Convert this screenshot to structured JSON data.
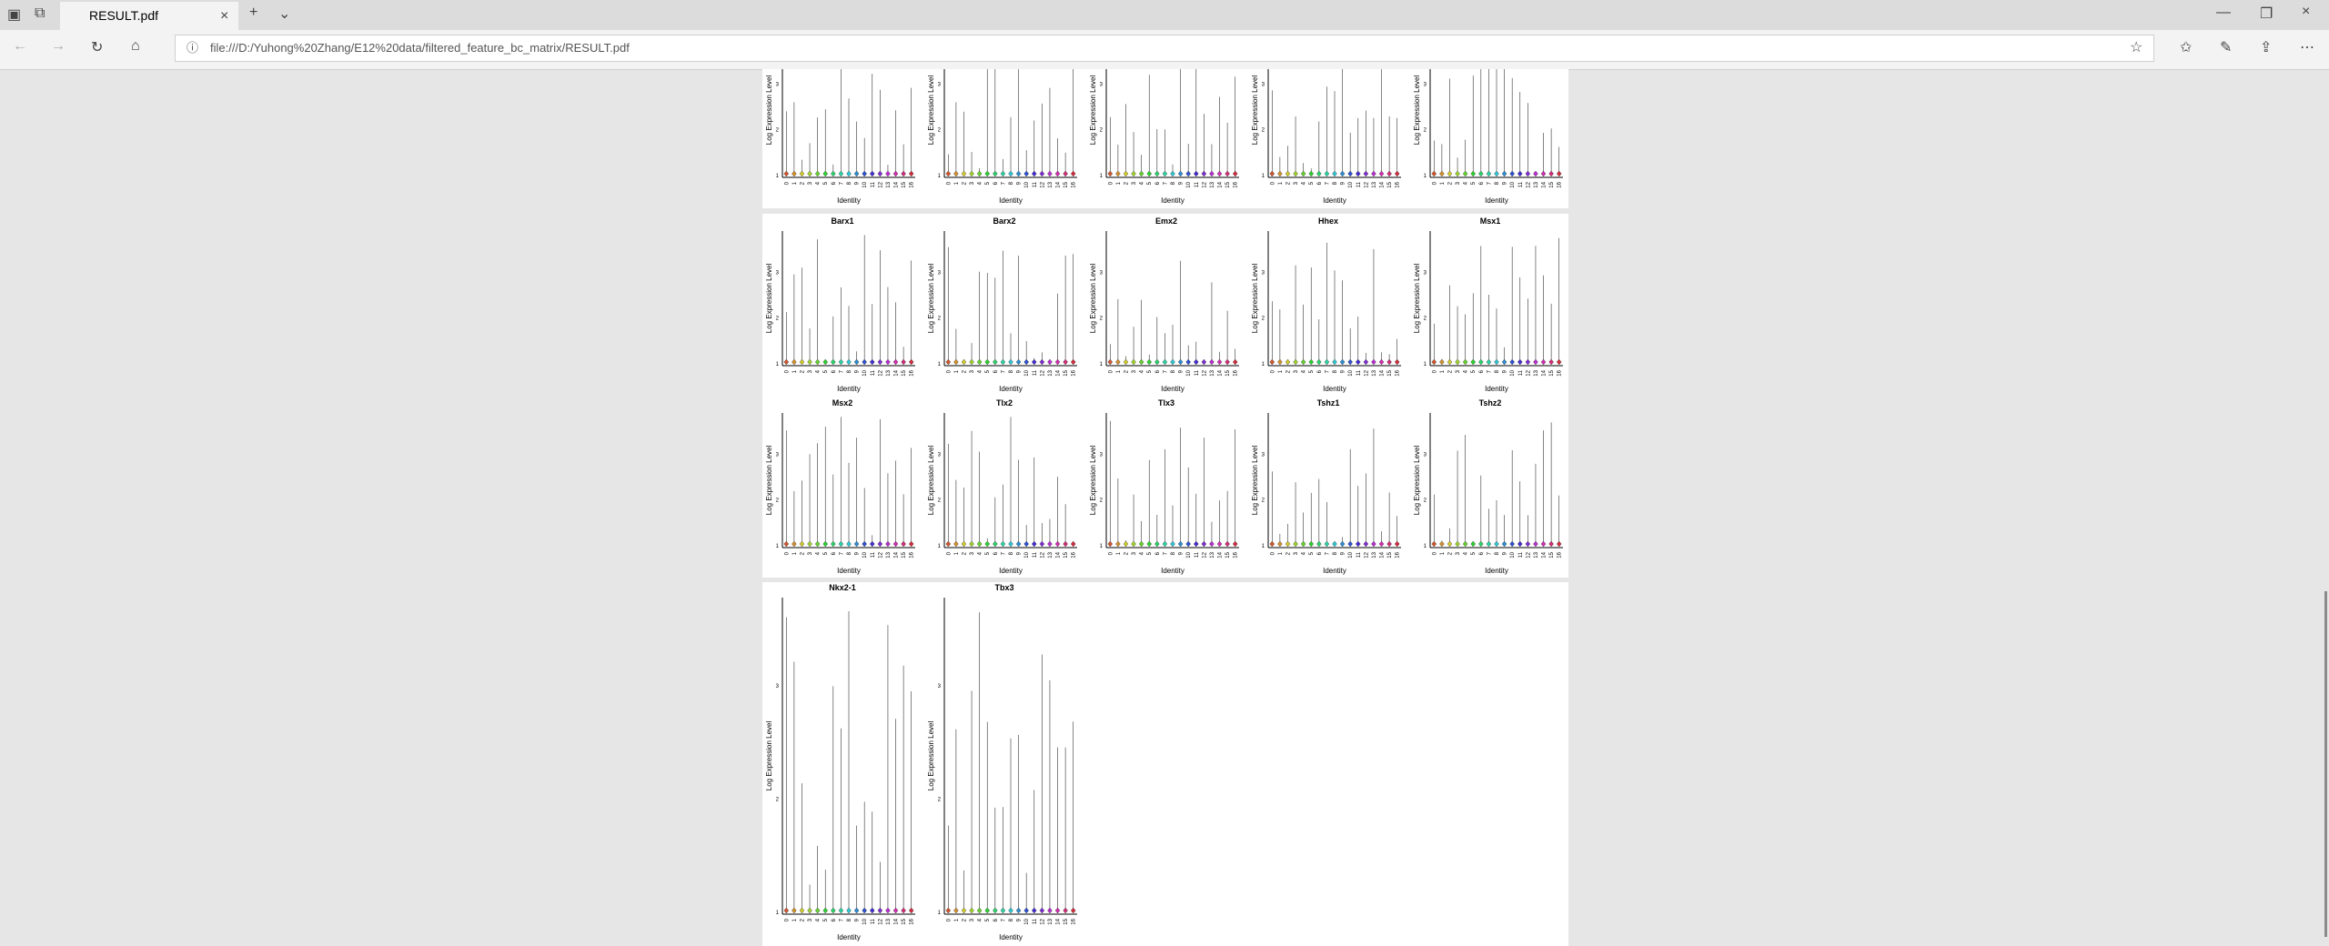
{
  "browser": {
    "tab_title": "RESULT.pdf",
    "url": "file:///D:/Yuhong%20Zhang/E12%20data/filtered_feature_bc_matrix/RESULT.pdf"
  },
  "plot_labels": {
    "y_axis": "Log Expression Level",
    "x_axis": "Identity",
    "y_ticks": [
      "1",
      "2",
      "3"
    ],
    "identities": [
      "0",
      "1",
      "2",
      "3",
      "4",
      "5",
      "6",
      "7",
      "8",
      "9",
      "10",
      "11",
      "12",
      "13",
      "14",
      "15",
      "16"
    ]
  },
  "genes_page2": [
    "Barx1",
    "Barx2",
    "Emx2",
    "Hhex",
    "Msx1",
    "Msx2",
    "Tlx2",
    "Tlx3",
    "Tshz1",
    "Tshz2"
  ],
  "genes_page3": [
    "Nkx2-1",
    "Tbx3"
  ]
}
